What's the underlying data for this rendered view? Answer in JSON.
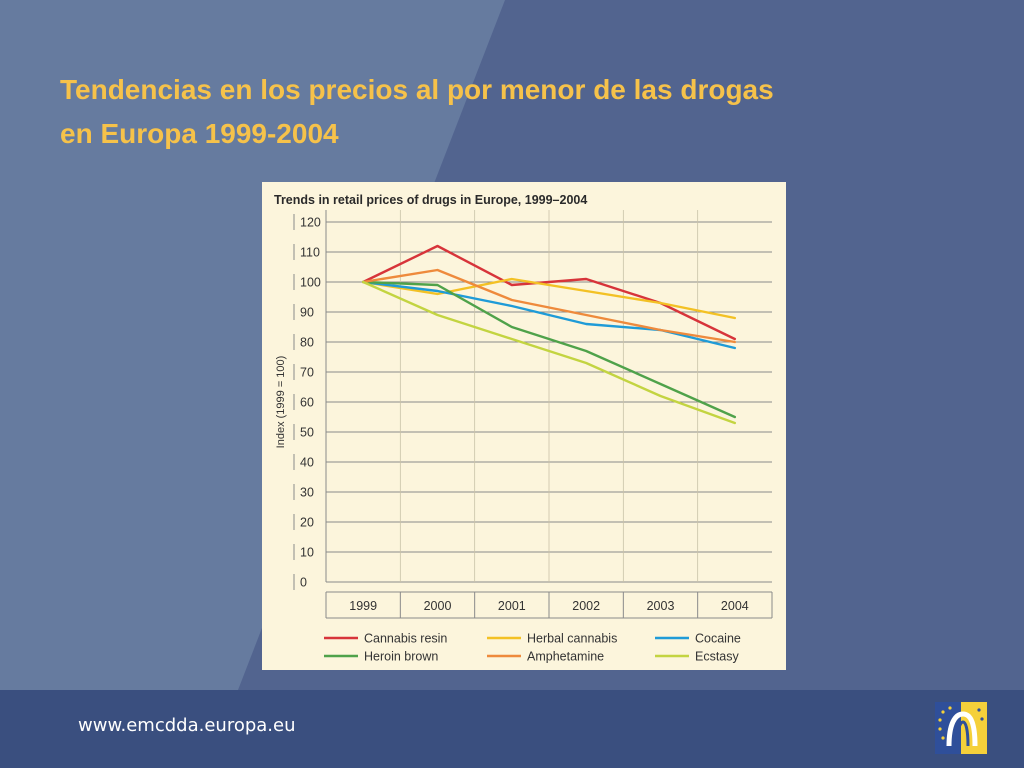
{
  "slide": {
    "title_line1": "Tendencias en los precios al por menor de las drogas",
    "title_line2": "en Europa 1999-2004",
    "footer_url": "www.emcdda.europa.eu",
    "colors": {
      "background": "#52648f",
      "title": "#f6c24a",
      "footer": "#3a4f7f",
      "chart_panel": "#fcf5dc"
    },
    "logo_icon": "emcdda-logo-icon"
  },
  "chart_data": {
    "type": "line",
    "title": "Trends in retail prices of drugs in Europe, 1999–2004",
    "xlabel": "",
    "ylabel": "Index (1999 = 100)",
    "categories": [
      "1999",
      "2000",
      "2001",
      "2002",
      "2003",
      "2004"
    ],
    "ylim": [
      0,
      120
    ],
    "yticks": [
      0,
      10,
      20,
      30,
      40,
      50,
      60,
      70,
      80,
      90,
      100,
      110,
      120
    ],
    "grid": true,
    "legend_position": "bottom",
    "series": [
      {
        "name": "Cannabis resin",
        "color": "#d7343a",
        "values": [
          100,
          112,
          99,
          101,
          93,
          81
        ]
      },
      {
        "name": "Herbal cannabis",
        "color": "#f3c124",
        "values": [
          100,
          96,
          101,
          97,
          93,
          88
        ]
      },
      {
        "name": "Cocaine",
        "color": "#1f9bd7",
        "values": [
          100,
          97,
          92,
          86,
          84,
          78
        ]
      },
      {
        "name": "Heroin brown",
        "color": "#4fa24a",
        "values": [
          100,
          99,
          85,
          77,
          66,
          55
        ]
      },
      {
        "name": "Amphetamine",
        "color": "#ee8a3c",
        "values": [
          100,
          104,
          94,
          89,
          84,
          80
        ]
      },
      {
        "name": "Ecstasy",
        "color": "#c3d441",
        "values": [
          100,
          89,
          81,
          73,
          62,
          53
        ]
      }
    ]
  }
}
